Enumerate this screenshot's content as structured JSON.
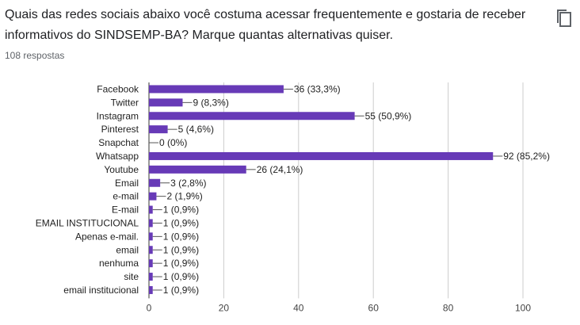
{
  "question": {
    "title": "Quais das redes sociais abaixo você costuma acessar frequentemente e gostaria de receber informativos do SINDSEMP-BA? Marque quantas alternativas quiser.",
    "responses": "108 respostas",
    "copy_icon": "copy-icon"
  },
  "colors": {
    "bar": "#673ab7",
    "axis": "#333333",
    "grid": "#cccccc"
  },
  "chart_data": {
    "type": "bar",
    "orientation": "horizontal",
    "categories": [
      "Facebook",
      "Twitter",
      "Instagram",
      "Pinterest",
      "Snapchat",
      "Whatsapp",
      "Youtube",
      "Email",
      "e-mail",
      "E-mail",
      "EMAIL INSTITUCIONAL",
      "Apenas e-mail.",
      "email",
      "nenhuma",
      "site",
      "email institucional"
    ],
    "values": [
      36,
      9,
      55,
      5,
      0,
      92,
      26,
      3,
      2,
      1,
      1,
      1,
      1,
      1,
      1,
      1
    ],
    "data_labels": [
      "36 (33,3%)",
      "9 (8,3%)",
      "55 (50,9%)",
      "5 (4,6%)",
      "0 (0%)",
      "92 (85,2%)",
      "26 (24,1%)",
      "3 (2,8%)",
      "2 (1,9%)",
      "1 (0,9%)",
      "1 (0,9%)",
      "1 (0,9%)",
      "1 (0,9%)",
      "1 (0,9%)",
      "1 (0,9%)",
      "1 (0,9%)"
    ],
    "xlim": [
      0,
      100
    ],
    "xticks": [
      0,
      20,
      40,
      60,
      80,
      100
    ],
    "grid": true
  }
}
